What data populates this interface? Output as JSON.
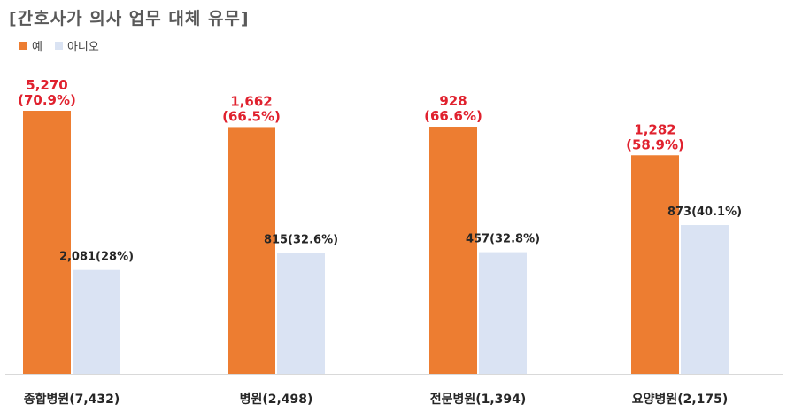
{
  "chart_data": {
    "type": "bar",
    "title": "[간호사가 의사 업무 대체 유무]",
    "categories": [
      "종합병원(7,432)",
      "병원(2,498)",
      "전문병원(1,394)",
      "요양병원(2,175)"
    ],
    "series": [
      {
        "name": "예",
        "color": "#ED7D31",
        "label_color": "#E0212E",
        "values": [
          5270,
          1662,
          928,
          1282
        ],
        "percents": [
          70.9,
          66.5,
          66.6,
          58.9
        ],
        "labels_line1": [
          "5,270",
          "1,662",
          "928",
          "1,282"
        ],
        "labels_line2": [
          "(70.9%)",
          "(66.5%)",
          "(66.6%)",
          "(58.9%)"
        ]
      },
      {
        "name": "아니오",
        "color": "#DAE3F3",
        "label_color": "#262626",
        "values": [
          2081,
          815,
          457,
          873
        ],
        "percents": [
          28,
          32.6,
          32.8,
          40.1
        ],
        "labels": [
          "2,081(28%)",
          "815(32.6%)",
          "457(32.8%)",
          "873(40.1%)"
        ]
      }
    ],
    "bar_height_basis": "percent",
    "ylim": [
      0,
      100
    ],
    "xlabel": "",
    "ylabel": "",
    "grid": false,
    "legend_position": "top-left"
  }
}
